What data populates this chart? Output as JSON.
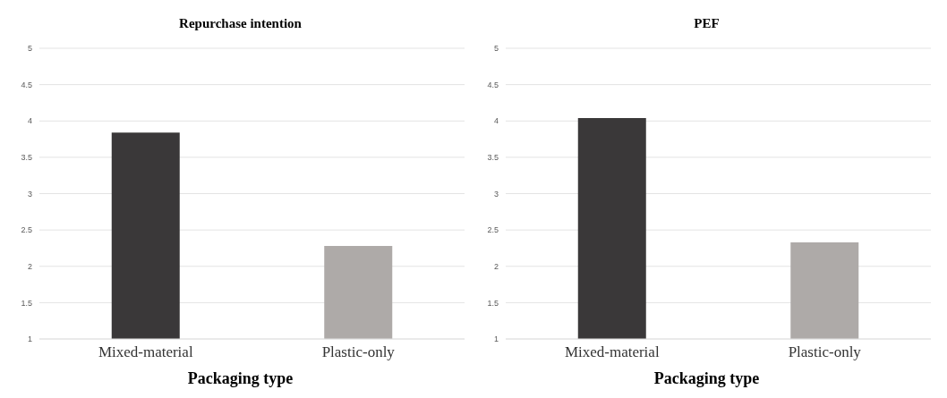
{
  "chart_data": [
    {
      "type": "bar",
      "title": "Repurchase intention",
      "xlabel": "Packaging type",
      "categories": [
        "Mixed-material",
        "Plastic-only"
      ],
      "values": [
        3.84,
        2.28
      ],
      "colors": [
        "#3a3839",
        "#aeaaa8"
      ],
      "ylim": [
        1,
        5
      ],
      "yticks": [
        1,
        1.5,
        2,
        2.5,
        3,
        3.5,
        4,
        4.5,
        5
      ],
      "grid": "y"
    },
    {
      "type": "bar",
      "title": "PEF",
      "xlabel": "Packaging type",
      "categories": [
        "Mixed-material",
        "Plastic-only"
      ],
      "values": [
        4.04,
        2.33
      ],
      "colors": [
        "#3a3839",
        "#aeaaa8"
      ],
      "ylim": [
        1,
        5
      ],
      "yticks": [
        1,
        1.5,
        2,
        2.5,
        3,
        3.5,
        4,
        4.5,
        5
      ],
      "grid": "y"
    }
  ]
}
